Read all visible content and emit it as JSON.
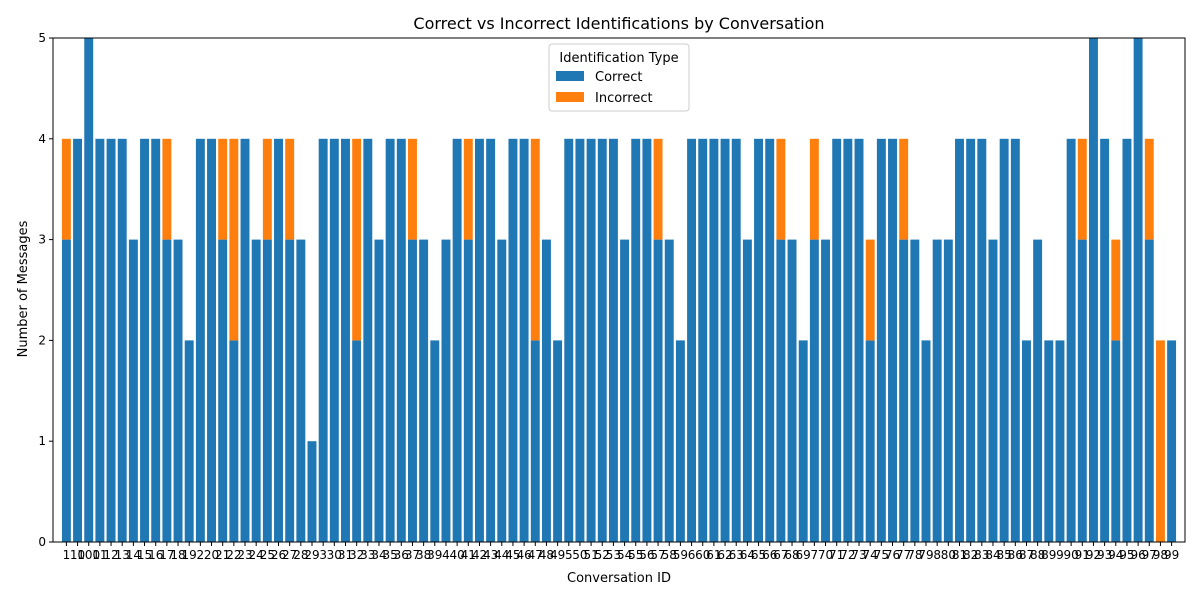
{
  "chart_data": {
    "type": "bar",
    "stacked": true,
    "title": "Correct vs Incorrect Identifications by Conversation",
    "xlabel": "Conversation ID",
    "ylabel": "Number of Messages",
    "ylim": [
      0,
      5
    ],
    "yticks": [
      "0",
      "1",
      "2",
      "3",
      "4",
      "5"
    ],
    "legend": {
      "title": "Identification Type",
      "placement": "top-center",
      "entries": [
        "Correct",
        "Incorrect"
      ]
    },
    "colors": {
      "Correct": "#1f77b4",
      "Incorrect": "#ff7f0e"
    },
    "grid": false,
    "categories": [
      "1",
      "10",
      "100",
      "11",
      "12",
      "13",
      "14",
      "15",
      "16",
      "17",
      "18",
      "19",
      "2",
      "20",
      "21",
      "22",
      "23",
      "24",
      "25",
      "26",
      "27",
      "28",
      "29",
      "3",
      "30",
      "31",
      "32",
      "33",
      "34",
      "35",
      "36",
      "37",
      "38",
      "39",
      "4",
      "40",
      "41",
      "42",
      "43",
      "44",
      "45",
      "46",
      "47",
      "48",
      "49",
      "5",
      "50",
      "51",
      "52",
      "53",
      "54",
      "55",
      "56",
      "57",
      "58",
      "59",
      "6",
      "60",
      "61",
      "62",
      "63",
      "64",
      "65",
      "66",
      "67",
      "68",
      "69",
      "7",
      "70",
      "71",
      "72",
      "73",
      "74",
      "75",
      "76",
      "77",
      "78",
      "79",
      "8",
      "80",
      "81",
      "82",
      "83",
      "84",
      "85",
      "86",
      "87",
      "88",
      "89",
      "9",
      "90",
      "91",
      "92",
      "93",
      "94",
      "95",
      "96",
      "97",
      "98",
      "99"
    ],
    "series": [
      {
        "name": "Correct",
        "values": [
          3,
          4,
          5,
          4,
          4,
          4,
          3,
          4,
          4,
          3,
          3,
          2,
          4,
          4,
          3,
          2,
          4,
          3,
          3,
          4,
          3,
          3,
          1,
          4,
          4,
          4,
          2,
          4,
          3,
          4,
          4,
          3,
          3,
          2,
          3,
          4,
          3,
          4,
          4,
          3,
          4,
          4,
          2,
          3,
          2,
          4,
          4,
          4,
          4,
          4,
          3,
          4,
          4,
          3,
          3,
          2,
          4,
          4,
          4,
          4,
          4,
          3,
          4,
          4,
          3,
          3,
          2,
          3,
          3,
          4,
          4,
          4,
          2,
          4,
          4,
          3,
          3,
          2,
          3,
          3,
          4,
          4,
          4,
          3,
          4,
          4,
          2,
          3,
          2,
          2,
          4,
          3,
          5,
          4,
          2,
          4,
          5,
          3,
          0,
          2
        ]
      },
      {
        "name": "Incorrect",
        "values": [
          1,
          0,
          0,
          0,
          0,
          0,
          0,
          0,
          0,
          1,
          0,
          0,
          0,
          0,
          1,
          2,
          0,
          0,
          1,
          0,
          1,
          0,
          0,
          0,
          0,
          0,
          2,
          0,
          0,
          0,
          0,
          1,
          0,
          0,
          0,
          0,
          1,
          0,
          0,
          0,
          0,
          0,
          2,
          0,
          0,
          0,
          0,
          0,
          0,
          0,
          0,
          0,
          0,
          1,
          0,
          0,
          0,
          0,
          0,
          0,
          0,
          0,
          0,
          0,
          1,
          0,
          0,
          1,
          0,
          0,
          0,
          0,
          1,
          0,
          0,
          1,
          0,
          0,
          0,
          0,
          0,
          0,
          0,
          0,
          0,
          0,
          0,
          0,
          0,
          0,
          0,
          1,
          0,
          0,
          1,
          0,
          0,
          1,
          2,
          0
        ]
      }
    ]
  }
}
